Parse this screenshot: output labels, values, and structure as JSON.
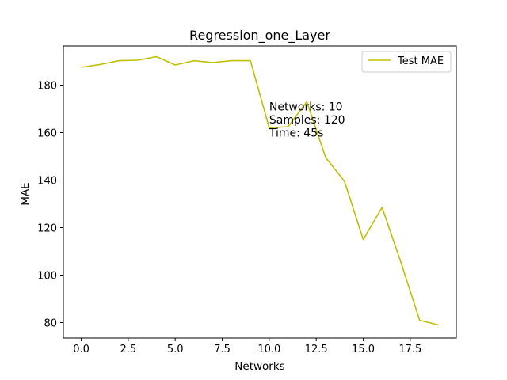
{
  "chart_data": {
    "type": "line",
    "title": "Regression_one_Layer",
    "xlabel": "Networks",
    "ylabel": "MAE",
    "xlim": [
      -0.95,
      19.95
    ],
    "ylim": [
      73.5,
      196.5
    ],
    "xticks": [
      0.0,
      2.5,
      5.0,
      7.5,
      10.0,
      12.5,
      15.0,
      17.5
    ],
    "xtick_labels": [
      "0.0",
      "2.5",
      "5.0",
      "7.5",
      "10.0",
      "12.5",
      "15.0",
      "17.5"
    ],
    "yticks": [
      80,
      100,
      120,
      140,
      160,
      180
    ],
    "ytick_labels": [
      "80",
      "100",
      "120",
      "140",
      "160",
      "180"
    ],
    "grid": false,
    "legend_position": "top-right",
    "series": [
      {
        "name": "Test MAE",
        "color": "#bfbf00",
        "x": [
          0,
          1,
          2,
          3,
          4,
          5,
          6,
          7,
          8,
          9,
          10,
          11,
          12,
          13,
          14,
          15,
          16,
          17,
          18,
          19
        ],
        "y": [
          187.5,
          188.7,
          190.3,
          190.5,
          192.0,
          188.5,
          190.3,
          189.5,
          190.3,
          190.3,
          162.0,
          162.5,
          173.0,
          149.5,
          139.5,
          115.0,
          128.5,
          105.5,
          81.0,
          79.0
        ]
      }
    ],
    "annotation": {
      "lines": [
        "Networks: 10",
        "Samples: 120",
        "Time: 45s"
      ],
      "x": 10,
      "y": 160
    }
  }
}
